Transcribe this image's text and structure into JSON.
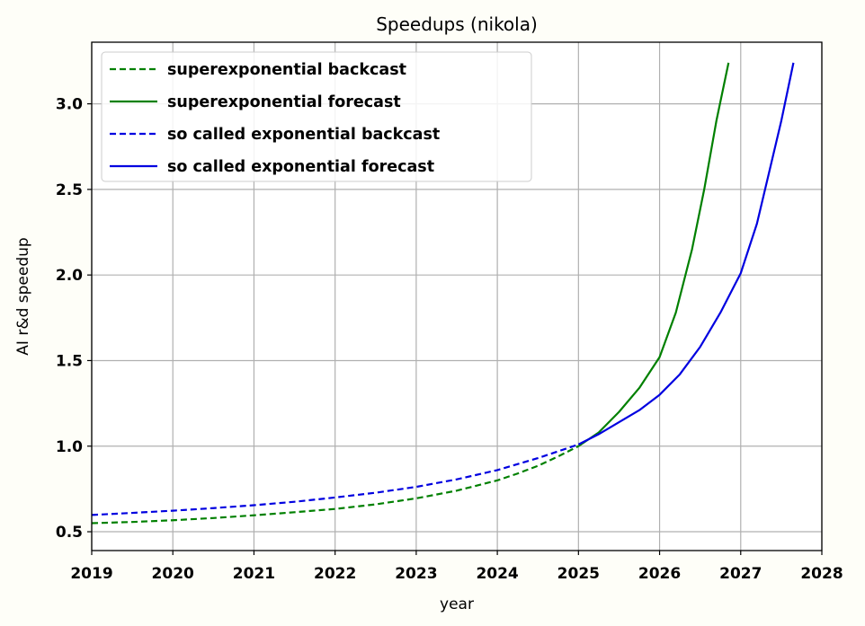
{
  "chart_data": {
    "type": "line",
    "title": "Speedups (nikola)",
    "xlabel": "year",
    "ylabel": "AI r&d speedup",
    "xlim": [
      2019,
      2028
    ],
    "ylim": [
      0.39,
      3.36
    ],
    "xticks": [
      2019,
      2020,
      2021,
      2022,
      2023,
      2024,
      2025,
      2026,
      2027,
      2028
    ],
    "xtick_labels": [
      "2019",
      "2020",
      "2021",
      "2022",
      "2023",
      "2024",
      "2025",
      "2026",
      "2027",
      "2028"
    ],
    "yticks": [
      0.5,
      1.0,
      1.5,
      2.0,
      2.5,
      3.0
    ],
    "ytick_labels": [
      "0.5",
      "1.0",
      "1.5",
      "2.0",
      "2.5",
      "3.0"
    ],
    "grid": true,
    "legend_position": "top-left",
    "series": [
      {
        "name": "superexponential backcast",
        "color": "#008000",
        "dash": "dashed",
        "x": [
          2019.0,
          2019.5,
          2020.0,
          2020.5,
          2021.0,
          2021.5,
          2022.0,
          2022.5,
          2023.0,
          2023.5,
          2024.0,
          2024.25,
          2024.5,
          2024.75,
          2025.0
        ],
        "y": [
          0.55,
          0.557,
          0.567,
          0.58,
          0.596,
          0.614,
          0.633,
          0.66,
          0.695,
          0.74,
          0.8,
          0.84,
          0.885,
          0.94,
          1.0
        ]
      },
      {
        "name": "superexponential forecast",
        "color": "#008000",
        "dash": "solid",
        "x": [
          2025.0,
          2025.25,
          2025.5,
          2025.75,
          2026.0,
          2026.2,
          2026.4,
          2026.55,
          2026.7,
          2026.85
        ],
        "y": [
          1.0,
          1.08,
          1.2,
          1.34,
          1.52,
          1.78,
          2.15,
          2.5,
          2.9,
          3.24
        ]
      },
      {
        "name": "so called exponential backcast",
        "color": "#0000e0",
        "dash": "dashed",
        "x": [
          2019.0,
          2019.5,
          2020.0,
          2020.5,
          2021.0,
          2021.5,
          2022.0,
          2022.5,
          2023.0,
          2023.5,
          2024.0,
          2024.5,
          2025.0
        ],
        "y": [
          0.598,
          0.61,
          0.623,
          0.638,
          0.655,
          0.675,
          0.7,
          0.728,
          0.762,
          0.806,
          0.86,
          0.93,
          1.01
        ]
      },
      {
        "name": "so called exponential forecast",
        "color": "#0000e0",
        "dash": "solid",
        "x": [
          2025.0,
          2025.25,
          2025.5,
          2025.75,
          2026.0,
          2026.25,
          2026.5,
          2026.75,
          2027.0,
          2027.2,
          2027.35,
          2027.5,
          2027.65
        ],
        "y": [
          1.01,
          1.07,
          1.14,
          1.21,
          1.3,
          1.42,
          1.58,
          1.78,
          2.01,
          2.3,
          2.6,
          2.9,
          3.24
        ]
      }
    ]
  }
}
